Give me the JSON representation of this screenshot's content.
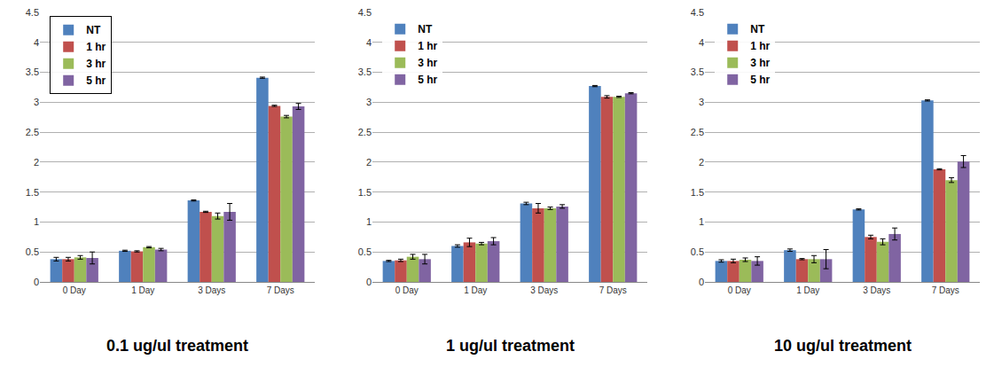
{
  "chart_data": [
    {
      "type": "bar",
      "title": "0.1 ug/ul treatment",
      "categories": [
        "0 Day",
        "1 Day",
        "3 Days",
        "7 Days"
      ],
      "series": [
        {
          "name": "NT",
          "color": "#4f81bd",
          "values": [
            0.38,
            0.52,
            1.36,
            3.41
          ],
          "errors": [
            0.03,
            0.01,
            0.01,
            0.01
          ]
        },
        {
          "name": "1 hr",
          "color": "#c0504d",
          "values": [
            0.38,
            0.51,
            1.17,
            2.94
          ],
          "errors": [
            0.03,
            0.01,
            0.01,
            0.01
          ]
        },
        {
          "name": "3 hr",
          "color": "#9bbb59",
          "values": [
            0.41,
            0.58,
            1.1,
            2.76
          ],
          "errors": [
            0.03,
            0.01,
            0.05,
            0.02
          ]
        },
        {
          "name": "5 hr",
          "color": "#8064a2",
          "values": [
            0.4,
            0.54,
            1.17,
            2.93
          ],
          "errors": [
            0.1,
            0.02,
            0.14,
            0.05
          ]
        }
      ],
      "ylim": [
        0,
        4.5
      ],
      "yticks": [
        0,
        0.5,
        1,
        1.5,
        2,
        2.5,
        3,
        3.5,
        4,
        4.5
      ],
      "grid": true,
      "legend": "top left"
    },
    {
      "type": "bar",
      "title": "1 ug/ul treatment",
      "categories": [
        "0 Day",
        "1 Day",
        "3 Days",
        "7 Days"
      ],
      "series": [
        {
          "name": "NT",
          "color": "#4f81bd",
          "values": [
            0.35,
            0.6,
            1.31,
            3.27
          ],
          "errors": [
            0.01,
            0.02,
            0.02,
            0.01
          ]
        },
        {
          "name": "1 hr",
          "color": "#c0504d",
          "values": [
            0.36,
            0.66,
            1.23,
            3.09
          ],
          "errors": [
            0.02,
            0.07,
            0.08,
            0.02
          ]
        },
        {
          "name": "3 hr",
          "color": "#9bbb59",
          "values": [
            0.42,
            0.64,
            1.23,
            3.09
          ],
          "errors": [
            0.04,
            0.02,
            0.02,
            0.01
          ]
        },
        {
          "name": "5 hr",
          "color": "#8064a2",
          "values": [
            0.38,
            0.68,
            1.26,
            3.15
          ],
          "errors": [
            0.08,
            0.06,
            0.03,
            0.01
          ]
        }
      ],
      "ylim": [
        0,
        4.5
      ],
      "yticks": [
        0,
        0.5,
        1,
        1.5,
        2,
        2.5,
        3,
        3.5,
        4,
        4.5
      ],
      "grid": true,
      "legend": "top left"
    },
    {
      "type": "bar",
      "title": "10 ug/ul treatment",
      "categories": [
        "0 Day",
        "1 Day",
        "3 Days",
        "7 Days"
      ],
      "series": [
        {
          "name": "NT",
          "color": "#4f81bd",
          "values": [
            0.35,
            0.53,
            1.21,
            3.03
          ],
          "errors": [
            0.02,
            0.02,
            0.01,
            0.01
          ]
        },
        {
          "name": "1 hr",
          "color": "#c0504d",
          "values": [
            0.35,
            0.38,
            0.75,
            1.88
          ],
          "errors": [
            0.03,
            0.01,
            0.03,
            0.01
          ]
        },
        {
          "name": "3 hr",
          "color": "#9bbb59",
          "values": [
            0.37,
            0.38,
            0.67,
            1.7
          ],
          "errors": [
            0.03,
            0.06,
            0.05,
            0.04
          ]
        },
        {
          "name": "5 hr",
          "color": "#8064a2",
          "values": [
            0.35,
            0.38,
            0.8,
            2.01
          ],
          "errors": [
            0.07,
            0.16,
            0.1,
            0.1
          ]
        }
      ],
      "ylim": [
        0,
        4.5
      ],
      "yticks": [
        0,
        0.5,
        1,
        1.5,
        2,
        2.5,
        3,
        3.5,
        4,
        4.5
      ],
      "grid": true,
      "legend": "top left"
    }
  ]
}
